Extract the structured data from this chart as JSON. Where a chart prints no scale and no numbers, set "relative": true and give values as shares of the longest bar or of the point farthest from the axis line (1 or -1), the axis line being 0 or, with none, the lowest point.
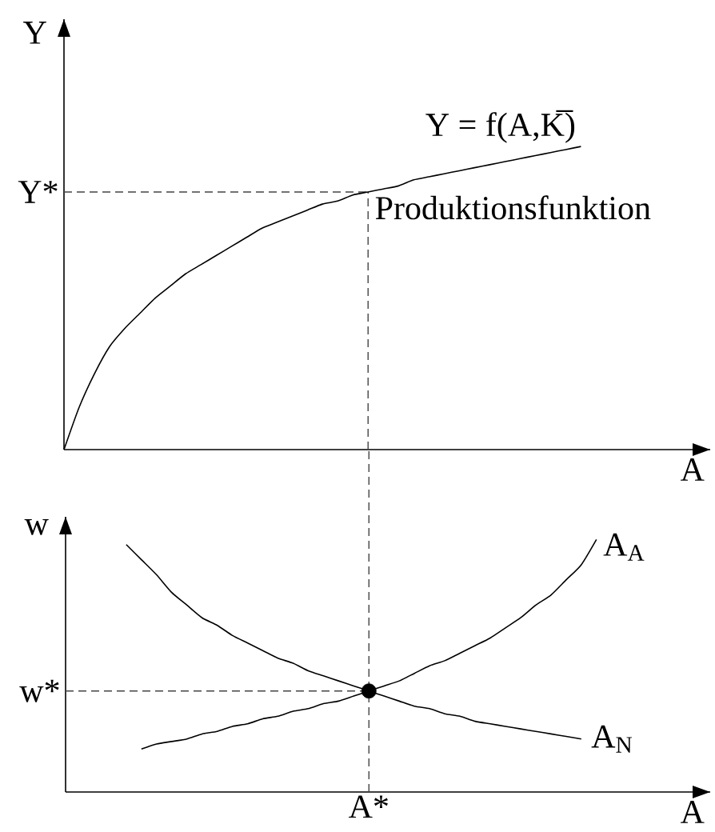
{
  "chart_data": [
    {
      "type": "line",
      "relative": true,
      "ylabel": "Y",
      "xlabel": "A",
      "marker": "none",
      "line_style": "solid",
      "categories": [
        null,
        null,
        null,
        null,
        null,
        null,
        null,
        null,
        null,
        null,
        null,
        null,
        null,
        null,
        null,
        null,
        null,
        null,
        null,
        null,
        null,
        null,
        null,
        null,
        null,
        null,
        null,
        null,
        null,
        null,
        null,
        null,
        null,
        null,
        null,
        null,
        null,
        null,
        null,
        null,
        null,
        null,
        null
      ],
      "series": [
        {
          "name": "Y = f(A,K̅)",
          "color": "#000000",
          "values": [
            0,
            0.14,
            0.25,
            0.34,
            0.4,
            0.45,
            0.5,
            0.54,
            0.58,
            0.61,
            0.64,
            0.67,
            0.7,
            0.73,
            0.75,
            0.77,
            0.79,
            0.81,
            0.82,
            0.84,
            0.85,
            0.86,
            0.87,
            0.89,
            0.9,
            0.91,
            0.92,
            0.93,
            0.94,
            0.95,
            0.96,
            0.97,
            0.98,
            0.99,
            1.0,
            null,
            null,
            null,
            null,
            null,
            null,
            null,
            null
          ]
        }
      ],
      "ref_lines": [
        {
          "axis": "y",
          "value": 0.85,
          "label": "Y*",
          "color": "#444444",
          "line_style": "dashed"
        }
      ],
      "annotations": [
        "Produktionsfunktion"
      ]
    },
    {
      "type": "line",
      "relative": true,
      "ylabel": "w",
      "xlabel": "A",
      "marker": "none",
      "line_style": "solid",
      "categories": [
        null,
        null,
        null,
        null,
        null,
        null,
        null,
        null,
        null,
        null,
        null,
        null,
        null,
        null,
        null,
        null,
        null,
        null,
        null,
        null,
        null,
        null,
        null,
        null,
        null,
        null,
        null,
        null,
        null,
        null,
        null,
        null,
        null,
        null,
        null,
        null,
        null,
        null,
        null,
        null,
        null,
        null,
        null
      ],
      "series": [
        {
          "name": "A$_{A}$",
          "color": "#000000",
          "values": [
            null,
            null,
            null,
            null,
            null,
            0.17,
            0.19,
            0.2,
            0.21,
            0.23,
            0.24,
            0.26,
            0.27,
            0.29,
            0.3,
            0.32,
            0.33,
            0.35,
            0.36,
            0.38,
            0.4,
            0.42,
            0.44,
            0.47,
            0.5,
            0.52,
            0.55,
            0.58,
            0.61,
            0.65,
            0.69,
            0.74,
            0.78,
            0.84,
            0.9,
            1.0,
            null,
            null,
            null,
            null,
            null,
            null,
            null
          ]
        },
        {
          "name": "A$_{N}$",
          "color": "#000000",
          "values": [
            null,
            null,
            null,
            null,
            0.98,
            0.92,
            0.86,
            0.79,
            0.74,
            0.69,
            0.66,
            0.62,
            0.59,
            0.56,
            0.53,
            0.51,
            0.48,
            0.46,
            0.44,
            0.42,
            0.4,
            0.38,
            0.36,
            0.34,
            0.33,
            0.31,
            0.3,
            0.28,
            0.27,
            0.26,
            0.25,
            0.24,
            0.23,
            0.22,
            0.21,
            null,
            null,
            null,
            null,
            null,
            null,
            null,
            null
          ]
        },
        {
          "type": "scatter",
          "color": "#000000",
          "marker": "circle",
          "values": [
            null,
            null,
            null,
            null,
            null,
            null,
            null,
            null,
            null,
            null,
            null,
            null,
            null,
            null,
            null,
            null,
            null,
            null,
            null,
            null,
            0.4,
            null,
            null,
            null,
            null,
            null,
            null,
            null,
            null,
            null,
            null,
            null,
            null,
            null,
            null,
            null,
            null,
            null,
            null,
            null,
            null,
            null,
            null
          ]
        }
      ],
      "ref_lines": [
        {
          "axis": "y",
          "value": 0.4,
          "label": "w*",
          "color": "#444444",
          "line_style": "dashed"
        }
      ],
      "annotations": [
        "A*"
      ]
    }
  ]
}
